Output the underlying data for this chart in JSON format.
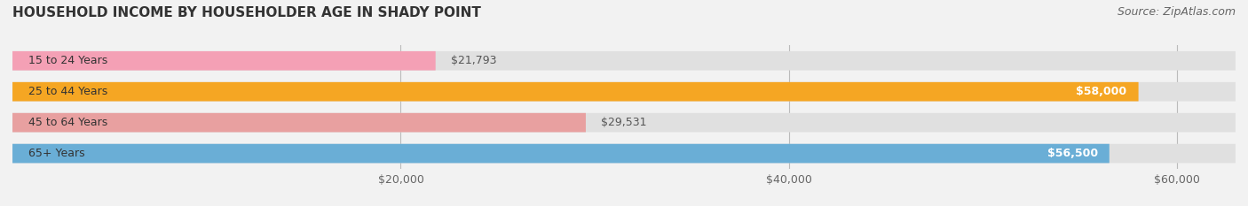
{
  "title": "HOUSEHOLD INCOME BY HOUSEHOLDER AGE IN SHADY POINT",
  "source": "Source: ZipAtlas.com",
  "categories": [
    "15 to 24 Years",
    "25 to 44 Years",
    "45 to 64 Years",
    "65+ Years"
  ],
  "values": [
    21793,
    58000,
    29531,
    56500
  ],
  "bar_colors": [
    "#f4a0b5",
    "#f5a623",
    "#e8a0a0",
    "#6aaed6"
  ],
  "value_labels": [
    "$21,793",
    "$58,000",
    "$29,531",
    "$56,500"
  ],
  "label_inside": [
    false,
    true,
    false,
    true
  ],
  "xlim": [
    0,
    63000
  ],
  "xticks": [
    20000,
    40000,
    60000
  ],
  "xticklabels": [
    "$20,000",
    "$40,000",
    "$60,000"
  ],
  "background_color": "#f2f2f2",
  "bar_background_color": "#e0e0e0",
  "title_fontsize": 11,
  "source_fontsize": 9,
  "tick_fontsize": 9,
  "label_fontsize": 9,
  "cat_fontsize": 9,
  "bar_height": 0.62
}
